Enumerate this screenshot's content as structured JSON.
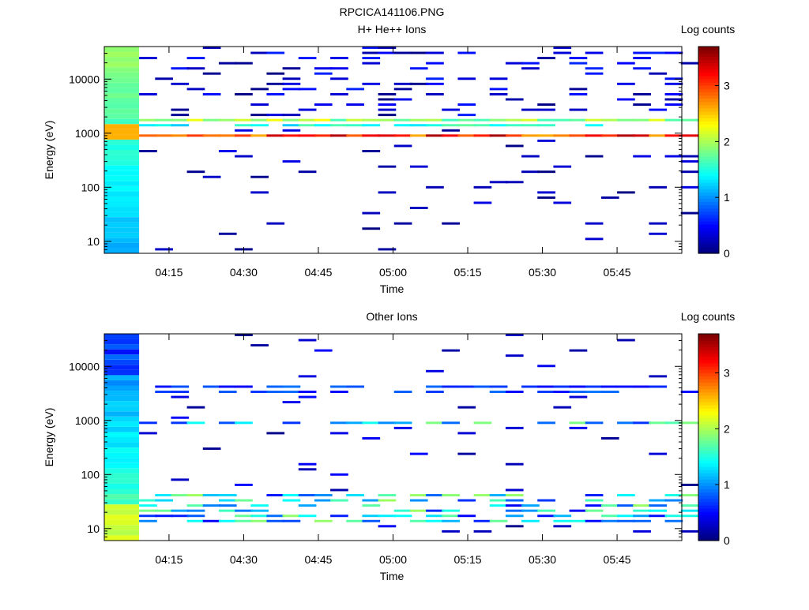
{
  "figure_title": "RPCICA141106.PNG",
  "chart_data": [
    {
      "type": "heatmap",
      "title": "H+ He++ Ions",
      "xlabel": "Time",
      "ylabel": "Energy (eV)",
      "y_scale": "log",
      "ylim": [
        6,
        40000
      ],
      "xlim": [
        "04:02",
        "05:58"
      ],
      "x_ticks": [
        "04:15",
        "04:30",
        "04:45",
        "05:00",
        "05:15",
        "05:30",
        "05:45"
      ],
      "y_ticks": [
        "10",
        "100",
        "1000",
        "10000"
      ],
      "colorbar": {
        "label": "Log counts",
        "ticks": [
          "0",
          "1",
          "2",
          "3"
        ],
        "range": [
          0,
          3.7
        ],
        "colormap": "jet"
      },
      "features": [
        {
          "description_band": "main",
          "energy_eV": 850,
          "log_counts": 3.4
        },
        {
          "description_band": "upper",
          "energy_eV": 1700,
          "log_counts": 2.1
        },
        {
          "description_band": "survey_column",
          "time": "04:02-04:09",
          "log_counts_range": [
            1.0,
            1.9
          ]
        }
      ]
    },
    {
      "type": "heatmap",
      "title": "Other Ions",
      "xlabel": "Time",
      "ylabel": "Energy (eV)",
      "y_scale": "log",
      "ylim": [
        6,
        40000
      ],
      "xlim": [
        "04:02",
        "05:58"
      ],
      "x_ticks": [
        "04:15",
        "04:30",
        "04:45",
        "05:00",
        "05:15",
        "05:30",
        "05:45"
      ],
      "y_ticks": [
        "10",
        "100",
        "1000",
        "10000"
      ],
      "colorbar": {
        "label": "Log counts",
        "ticks": [
          "0",
          "1",
          "2",
          "3"
        ],
        "range": [
          0,
          3.7
        ],
        "colormap": "jet"
      },
      "features": [
        {
          "description_band": "low_energy",
          "energy_eV": 20,
          "log_counts": 1.6
        },
        {
          "description_band": "mid",
          "energy_eV": 900,
          "log_counts": 1.2
        },
        {
          "description_band": "high",
          "energy_eV": 3500,
          "log_counts": 0.6
        }
      ]
    }
  ]
}
